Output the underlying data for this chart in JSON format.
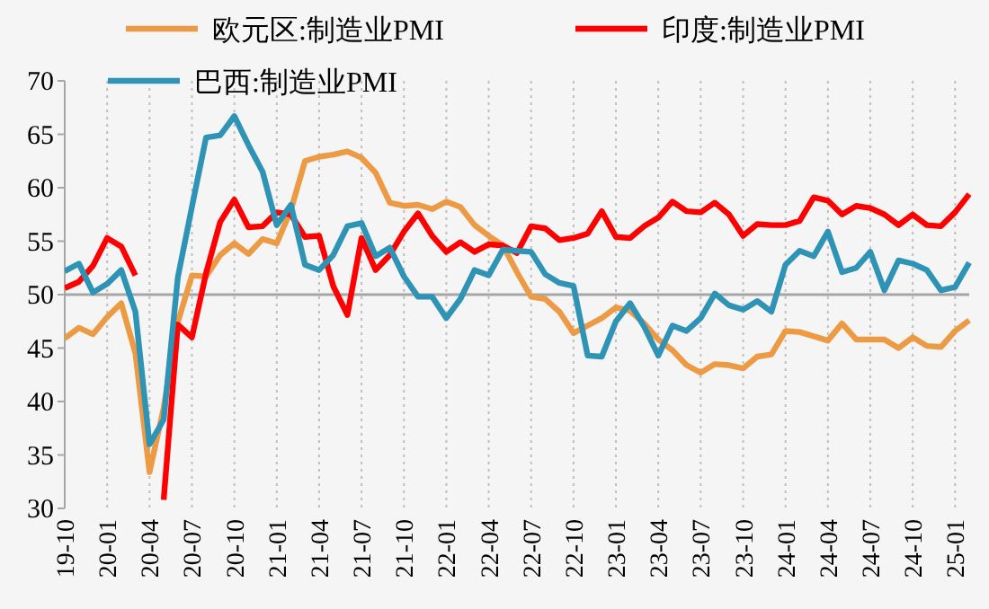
{
  "chart_data": {
    "type": "line",
    "categories": [
      "19-10",
      null,
      null,
      "20-01",
      null,
      null,
      "20-04",
      null,
      null,
      "20-07",
      null,
      null,
      "20-10",
      null,
      null,
      "21-01",
      null,
      null,
      "21-04",
      null,
      null,
      "21-07",
      null,
      null,
      "21-10",
      null,
      null,
      "22-01",
      null,
      null,
      "22-04",
      null,
      null,
      "22-07",
      null,
      null,
      "22-10",
      null,
      null,
      "23-01",
      null,
      null,
      "23-04",
      null,
      null,
      "23-07",
      null,
      null,
      "23-10",
      null,
      null,
      "24-01",
      null,
      null,
      "24-04",
      null,
      null,
      "24-07",
      null,
      null,
      "24-10",
      null,
      null,
      "25-01",
      null
    ],
    "series": [
      {
        "name": "欧元区:制造业PMI",
        "color": "#ed9a44",
        "values": [
          45.9,
          46.9,
          46.3,
          47.9,
          49.2,
          44.5,
          33.4,
          39.4,
          47.4,
          51.8,
          51.7,
          53.7,
          54.8,
          53.8,
          55.2,
          54.8,
          57.9,
          62.5,
          62.9,
          63.1,
          63.4,
          62.8,
          61.4,
          58.6,
          58.3,
          58.4,
          58.0,
          58.7,
          58.2,
          56.5,
          55.5,
          54.6,
          52.1,
          49.8,
          49.6,
          48.4,
          46.4,
          47.1,
          47.8,
          48.8,
          48.5,
          47.3,
          45.8,
          44.8,
          43.4,
          42.7,
          43.5,
          43.4,
          43.1,
          44.2,
          44.4,
          46.6,
          46.5,
          46.1,
          45.7,
          47.3,
          45.8,
          45.8,
          45.8,
          45.0,
          46.0,
          45.2,
          45.1,
          46.6,
          47.6
        ]
      },
      {
        "name": "印度:制造业PMI",
        "color": "#ff0000",
        "values": [
          50.6,
          51.2,
          52.7,
          55.3,
          54.5,
          51.8,
          null,
          30.8,
          47.2,
          46.0,
          52.0,
          56.8,
          58.9,
          56.3,
          56.4,
          57.7,
          57.5,
          55.4,
          55.5,
          50.8,
          48.1,
          55.3,
          52.3,
          53.7,
          55.9,
          57.6,
          55.5,
          54.0,
          54.9,
          54.0,
          54.7,
          54.6,
          53.9,
          56.4,
          56.2,
          55.1,
          55.3,
          55.7,
          57.8,
          55.4,
          55.3,
          56.4,
          57.2,
          58.7,
          57.8,
          57.7,
          58.6,
          57.5,
          55.5,
          56.6,
          56.5,
          56.5,
          56.9,
          59.1,
          58.8,
          57.5,
          58.3,
          58.1,
          57.5,
          56.5,
          57.5,
          56.5,
          56.4,
          57.7,
          59.4
        ]
      },
      {
        "name": "巴西:制造业PMI",
        "color": "#2e93b5",
        "values": [
          52.2,
          52.9,
          50.2,
          51.0,
          52.3,
          48.4,
          36.0,
          38.3,
          51.6,
          58.2,
          64.7,
          64.9,
          66.7,
          64.0,
          61.5,
          56.5,
          58.4,
          52.8,
          52.3,
          53.7,
          56.4,
          56.7,
          53.6,
          54.4,
          51.7,
          49.8,
          49.8,
          47.8,
          49.6,
          52.3,
          51.8,
          54.2,
          54.1,
          54.0,
          51.9,
          51.1,
          50.8,
          44.3,
          44.2,
          47.5,
          49.2,
          47.0,
          44.3,
          47.1,
          46.6,
          47.8,
          50.1,
          49.0,
          48.6,
          49.4,
          48.4,
          52.8,
          54.1,
          53.6,
          55.9,
          52.1,
          52.5,
          54.0,
          50.4,
          53.2,
          52.9,
          52.3,
          50.4,
          50.7,
          53.0
        ]
      }
    ],
    "ylim": [
      30,
      70
    ],
    "yticks": [
      30,
      35,
      40,
      45,
      50,
      55,
      60,
      65,
      70
    ],
    "ref_lines": [
      {
        "axis": "y",
        "value": 50,
        "color": "#a6a6a6"
      }
    ],
    "grid": "x",
    "legend": "top",
    "line_style": "solid",
    "marker": "none"
  }
}
